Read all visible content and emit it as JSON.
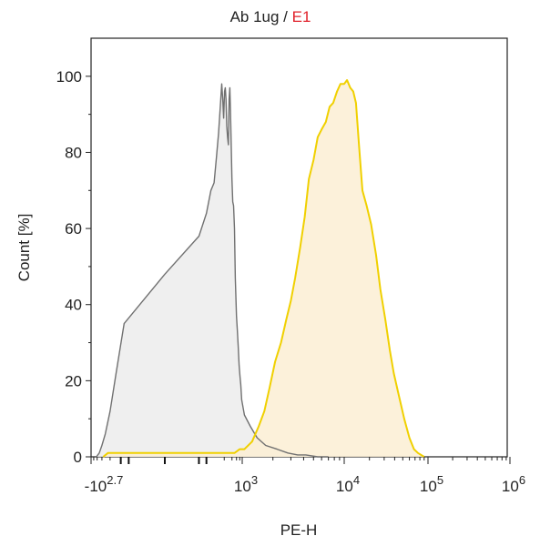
{
  "chart_data": {
    "type": "area",
    "title_parts": [
      {
        "text": "Ab 1ug",
        "color": "#222222"
      },
      {
        "text": " / ",
        "color": "#222222"
      },
      {
        "text": "E1",
        "color": "#e0202a"
      }
    ],
    "xlabel": "PE-H",
    "ylabel": "Count [%]",
    "ylim": [
      0,
      110
    ],
    "xscale": "biexponential",
    "yticks": [
      "0",
      "20",
      "40",
      "60",
      "80",
      "100"
    ],
    "yvalues": [
      0,
      20,
      40,
      60,
      80,
      100
    ],
    "xticks": [
      {
        "base": "-10",
        "exp": "2.7",
        "value": -501
      },
      {
        "base": "10",
        "exp": "3",
        "value": 1000
      },
      {
        "base": "10",
        "exp": "4",
        "value": 10000
      },
      {
        "base": "10",
        "exp": "5",
        "value": 100000
      },
      {
        "base": "10",
        "exp": "6",
        "value": 1000000
      }
    ],
    "grid": false,
    "series": [
      {
        "stroke": "#707070",
        "fill": "#ececec",
        "points": [
          [
            -320,
            0
          ],
          [
            -250,
            1
          ],
          [
            -200,
            3
          ],
          [
            -150,
            6
          ],
          [
            -100,
            12
          ],
          [
            -60,
            22
          ],
          [
            -30,
            35
          ],
          [
            0,
            48
          ],
          [
            20,
            58
          ],
          [
            40,
            64
          ],
          [
            60,
            70
          ],
          [
            80,
            72
          ],
          [
            100,
            79
          ],
          [
            120,
            85
          ],
          [
            140,
            92
          ],
          [
            160,
            98
          ],
          [
            175,
            94
          ],
          [
            190,
            89
          ],
          [
            205,
            96
          ],
          [
            220,
            97
          ],
          [
            235,
            94
          ],
          [
            250,
            87
          ],
          [
            270,
            84
          ],
          [
            290,
            82
          ],
          [
            310,
            94
          ],
          [
            330,
            97
          ],
          [
            350,
            91
          ],
          [
            375,
            81
          ],
          [
            400,
            73
          ],
          [
            430,
            67
          ],
          [
            460,
            66
          ],
          [
            500,
            60
          ],
          [
            540,
            47
          ],
          [
            600,
            37
          ],
          [
            650,
            33
          ],
          [
            700,
            29
          ],
          [
            760,
            24
          ],
          [
            820,
            21
          ],
          [
            880,
            19
          ],
          [
            950,
            15
          ],
          [
            1050,
            11
          ],
          [
            1200,
            8
          ],
          [
            1400,
            5
          ],
          [
            1700,
            3
          ],
          [
            2200,
            2
          ],
          [
            2800,
            1
          ],
          [
            3500,
            0.5
          ],
          [
            4200,
            0.5
          ],
          [
            5500,
            0
          ],
          [
            7000,
            0
          ]
        ]
      },
      {
        "stroke": "#f0d000",
        "fill": "#fbefd3",
        "points": [
          [
            -180,
            0
          ],
          [
            -120,
            1
          ],
          [
            0,
            1
          ],
          [
            200,
            1
          ],
          [
            500,
            1
          ],
          [
            800,
            2
          ],
          [
            1050,
            2
          ],
          [
            1250,
            4
          ],
          [
            1450,
            8
          ],
          [
            1650,
            12
          ],
          [
            1850,
            18
          ],
          [
            2100,
            25
          ],
          [
            2400,
            30
          ],
          [
            2700,
            36
          ],
          [
            3000,
            41
          ],
          [
            3300,
            47
          ],
          [
            3700,
            55
          ],
          [
            4100,
            63
          ],
          [
            4500,
            73
          ],
          [
            5000,
            78
          ],
          [
            5500,
            84
          ],
          [
            6000,
            86
          ],
          [
            6600,
            88
          ],
          [
            7200,
            92
          ],
          [
            7800,
            93
          ],
          [
            8500,
            96
          ],
          [
            9200,
            98
          ],
          [
            10000,
            98
          ],
          [
            10800,
            99
          ],
          [
            11800,
            97
          ],
          [
            12800,
            96
          ],
          [
            13800,
            93
          ],
          [
            15000,
            82
          ],
          [
            16500,
            70
          ],
          [
            18500,
            66
          ],
          [
            21000,
            61
          ],
          [
            24000,
            53
          ],
          [
            27000,
            44
          ],
          [
            31000,
            36
          ],
          [
            35000,
            28
          ],
          [
            39000,
            22
          ],
          [
            45000,
            16
          ],
          [
            52000,
            10
          ],
          [
            60000,
            5
          ],
          [
            68000,
            2
          ],
          [
            76000,
            1
          ],
          [
            90000,
            0
          ]
        ]
      }
    ]
  }
}
